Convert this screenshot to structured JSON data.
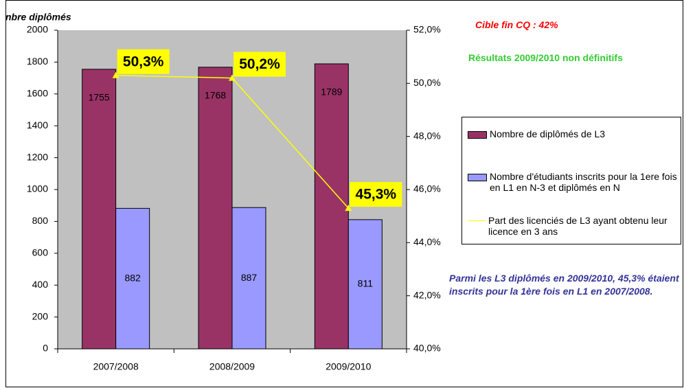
{
  "chart_data": {
    "type": "bar",
    "y_axis_label": "nbre diplômés",
    "categories": [
      "2007/2008",
      "2008/2009",
      "2009/2010"
    ],
    "series": [
      {
        "name": "Nombre de diplômés de L3",
        "color": "#993366",
        "values": [
          1755,
          1768,
          1789
        ]
      },
      {
        "name": "Nombre d'étudiants inscrits pour la 1ere fois en L1 en N-3 et diplômés en N",
        "color": "#9999ff",
        "values": [
          882,
          887,
          811
        ]
      },
      {
        "name": "Part des licenciés de L3 ayant obtenu leur licence en 3 ans",
        "type": "line",
        "axis": "y2",
        "color": "#ffff00",
        "values": [
          50.3,
          50.2,
          45.3
        ],
        "value_labels": [
          "50,3%",
          "50,2%",
          "45,3%"
        ]
      }
    ],
    "ylim": [
      0,
      2000
    ],
    "yticks": [
      0,
      200,
      400,
      600,
      800,
      1000,
      1200,
      1400,
      1600,
      1800,
      2000
    ],
    "y2lim": [
      40,
      52
    ],
    "y2ticks": [
      {
        "value": 40,
        "label": "40,0%"
      },
      {
        "value": 42,
        "label": "42,0%"
      },
      {
        "value": 44,
        "label": "44,0%"
      },
      {
        "value": 46,
        "label": "46,0%"
      },
      {
        "value": 48,
        "label": "48,0%"
      },
      {
        "value": 50,
        "label": "50,0%"
      },
      {
        "value": 52,
        "label": "52,0%"
      }
    ],
    "plot_background": "#c0c0c0",
    "legend": "right",
    "annotations": [
      {
        "text": "Cible fin CQ : 42%",
        "color": "#ff0000"
      },
      {
        "text": "Résultats 2009/2010 non définitifs",
        "color": "#33cc33"
      },
      {
        "text": "Parmi les L3 diplômés en 2009/2010, 45,3% étaient inscrits pour la 1ère fois en L1 en 2007/2008.",
        "color": "#333399"
      }
    ]
  }
}
